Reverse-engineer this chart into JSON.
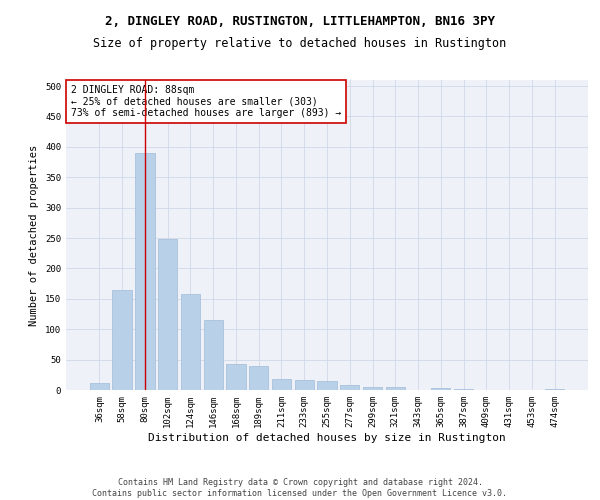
{
  "title": "2, DINGLEY ROAD, RUSTINGTON, LITTLEHAMPTON, BN16 3PY",
  "subtitle": "Size of property relative to detached houses in Rustington",
  "xlabel": "Distribution of detached houses by size in Rustington",
  "ylabel": "Number of detached properties",
  "categories": [
    "36sqm",
    "58sqm",
    "80sqm",
    "102sqm",
    "124sqm",
    "146sqm",
    "168sqm",
    "189sqm",
    "211sqm",
    "233sqm",
    "255sqm",
    "277sqm",
    "299sqm",
    "321sqm",
    "343sqm",
    "365sqm",
    "387sqm",
    "409sqm",
    "431sqm",
    "453sqm",
    "474sqm"
  ],
  "values": [
    12,
    165,
    390,
    248,
    158,
    115,
    43,
    40,
    18,
    16,
    14,
    9,
    5,
    5,
    0,
    4,
    2,
    0,
    0,
    0,
    2
  ],
  "bar_color": "#b8d0e8",
  "bar_edge_color": "#a0bcd8",
  "vline_x": 2,
  "vline_color": "#cc0000",
  "annotation_text": "2 DINGLEY ROAD: 88sqm\n← 25% of detached houses are smaller (303)\n73% of semi-detached houses are larger (893) →",
  "annotation_box_color": "white",
  "annotation_box_edge": "#cc0000",
  "ylim": [
    0,
    510
  ],
  "yticks": [
    0,
    50,
    100,
    150,
    200,
    250,
    300,
    350,
    400,
    450,
    500
  ],
  "grid_color": "#d0d8e8",
  "background_color": "#eef2f8",
  "footer": "Contains HM Land Registry data © Crown copyright and database right 2024.\nContains public sector information licensed under the Open Government Licence v3.0.",
  "title_fontsize": 9,
  "subtitle_fontsize": 8.5,
  "xlabel_fontsize": 8,
  "ylabel_fontsize": 7.5,
  "tick_fontsize": 6.5,
  "annotation_fontsize": 7,
  "footer_fontsize": 6
}
